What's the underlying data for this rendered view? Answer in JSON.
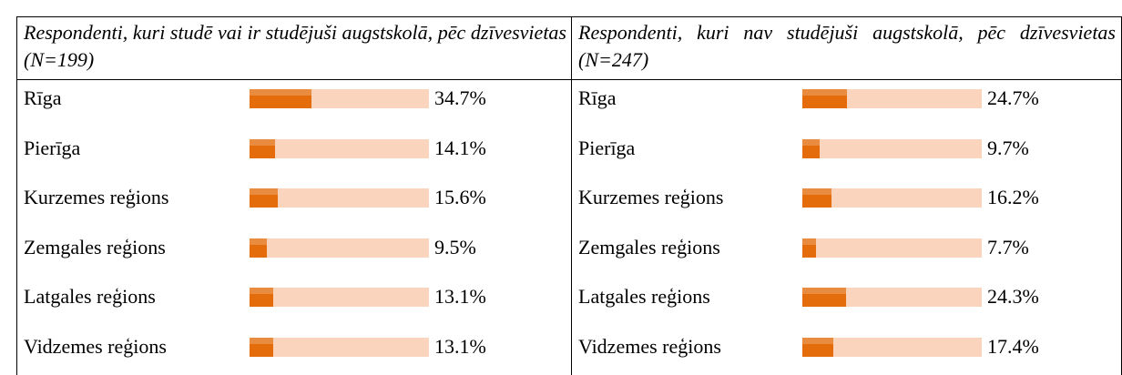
{
  "chart_data": [
    {
      "type": "bar",
      "title": "Respondenti, kuri studē vai ir studējuši augstskolā, pēc dzīvesvietas (N=199)",
      "categories": [
        "Rīga",
        "Pierīga",
        "Kurzemes reģions",
        "Zemgales reģions",
        "Latgales reģions",
        "Vidzemes reģions"
      ],
      "values": [
        34.7,
        14.1,
        15.6,
        9.5,
        13.1,
        13.1
      ],
      "value_labels": [
        "34.7%",
        "14.1%",
        "15.6%",
        "9.5%",
        "13.1%",
        "13.1%"
      ],
      "xlim": [
        0,
        100
      ],
      "color": "#e46c0a",
      "track_color": "#fad4bd"
    },
    {
      "type": "bar",
      "title": "Respondenti, kuri nav studējuši augstskolā, pēc dzīvesvietas (N=247)",
      "categories": [
        "Rīga",
        "Pierīga",
        "Kurzemes reģions",
        "Zemgales reģions",
        "Latgales reģions",
        "Vidzemes reģions"
      ],
      "values": [
        24.7,
        9.7,
        16.2,
        7.7,
        24.3,
        17.4
      ],
      "value_labels": [
        "24.7%",
        "9.7%",
        "16.2%",
        "7.7%",
        "24.3%",
        "17.4%"
      ],
      "xlim": [
        0,
        100
      ],
      "color": "#e46c0a",
      "track_color": "#fad4bd"
    }
  ]
}
